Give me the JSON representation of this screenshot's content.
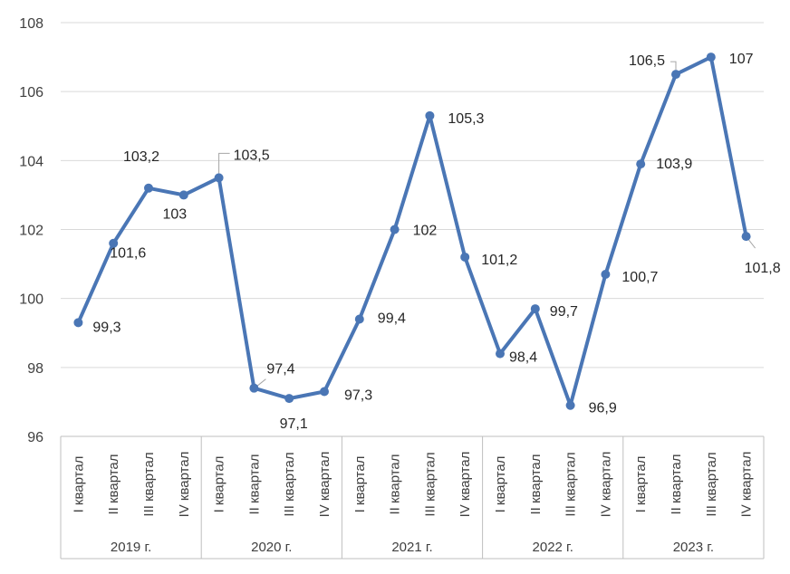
{
  "chart_data": {
    "type": "line",
    "title": "",
    "xlabel": "",
    "ylabel": "",
    "ylim": [
      96,
      108
    ],
    "yticks": [
      "96",
      "98",
      "100",
      "102",
      "104",
      "106",
      "108"
    ],
    "grid": true,
    "legend": "none",
    "colors": {
      "line": "#4a76b5",
      "grid": "#d9d9d9",
      "text": "#404040"
    },
    "groups": [
      {
        "label": "2019 г.",
        "quarters": [
          "I квартал",
          "II квартал",
          "III квартал",
          "IV квартал"
        ]
      },
      {
        "label": "2020 г.",
        "quarters": [
          "I квартал",
          "II квартал",
          "III квартал",
          "IV квартал"
        ]
      },
      {
        "label": "2021 г.",
        "quarters": [
          "I квартал",
          "II квартал",
          "III квартал",
          "IV квартал"
        ]
      },
      {
        "label": "2022 г.",
        "quarters": [
          "I квартал",
          "II квартал",
          "III квартал",
          "IV квартал"
        ]
      },
      {
        "label": "2023 г.",
        "quarters": [
          "I квартал",
          "II квартал",
          "III квартал",
          "IV квартал"
        ]
      }
    ],
    "series": [
      {
        "name": "",
        "values": [
          99.3,
          101.6,
          103.2,
          103.0,
          103.5,
          97.4,
          97.1,
          97.3,
          99.4,
          102.0,
          105.3,
          101.2,
          98.4,
          99.7,
          96.9,
          100.7,
          103.9,
          106.5,
          107.0,
          101.8
        ],
        "labels": [
          "99,3",
          "101,6",
          "103,2",
          "103",
          "103,5",
          "97,4",
          "97,1",
          "97,3",
          "99,4",
          "102",
          "105,3",
          "101,2",
          "98,4",
          "99,7",
          "96,9",
          "100,7",
          "103,9",
          "106,5",
          "107",
          "101,8"
        ]
      }
    ]
  }
}
